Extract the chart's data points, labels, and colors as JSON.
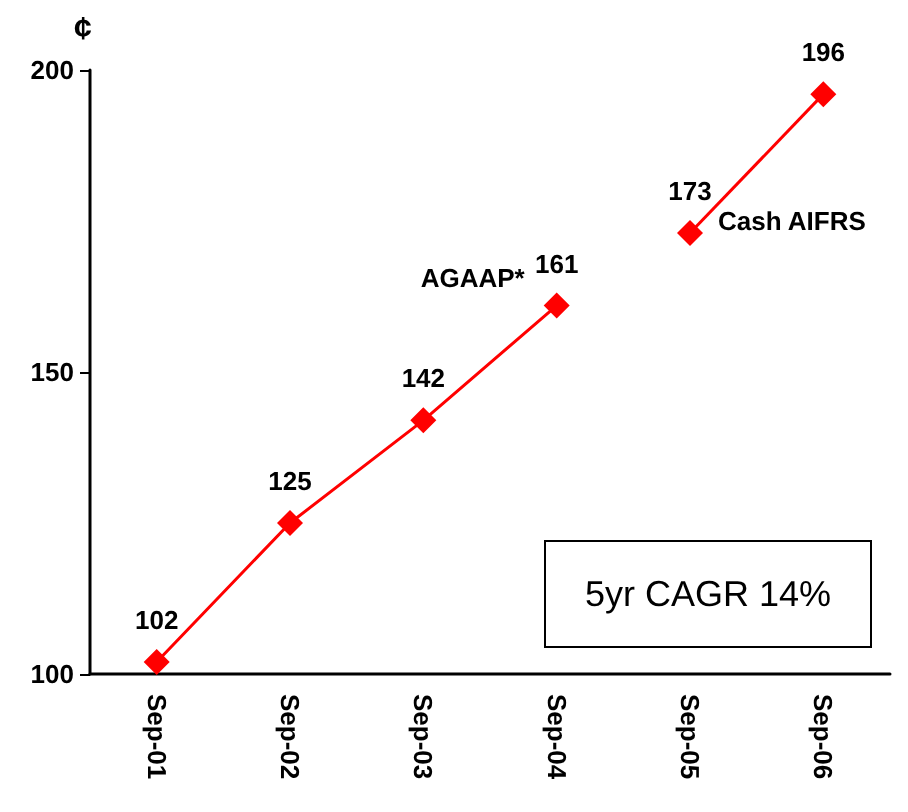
{
  "chart_data": {
    "type": "line",
    "ylabel": "¢",
    "categories": [
      "Sep-01",
      "Sep-02",
      "Sep-03",
      "Sep-04",
      "Sep-05",
      "Sep-06"
    ],
    "series": [
      {
        "name": "AGAAP*",
        "color": "#ff0000",
        "values": [
          102,
          125,
          142,
          161,
          null,
          null
        ]
      },
      {
        "name": "Cash AIFRS",
        "color": "#ff0000",
        "values": [
          null,
          null,
          null,
          null,
          173,
          196
        ]
      }
    ],
    "ylim": [
      100,
      200
    ],
    "yticks": [
      100,
      150,
      200
    ],
    "marker": "diamond",
    "line_style": "solid",
    "data_labels": true,
    "grid": false,
    "legend": false,
    "annotations": [
      "5yr CAGR 14%"
    ]
  }
}
